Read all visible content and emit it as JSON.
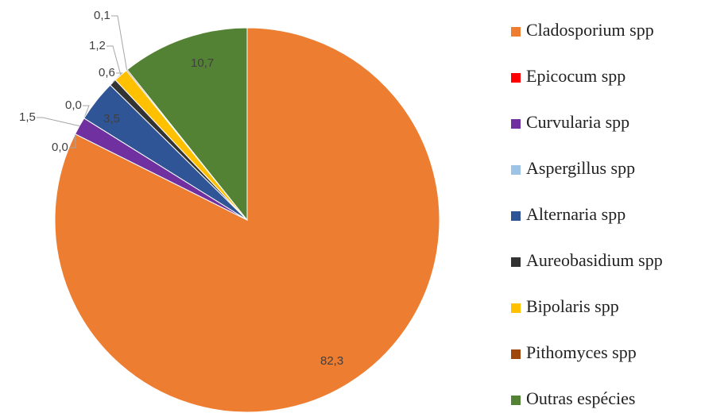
{
  "chart_data": {
    "type": "pie",
    "categories": [
      "Cladosporium spp",
      "Epicocum spp",
      "Curvularia spp",
      "Aspergillus spp",
      "Alternaria spp",
      "Aureobasidium spp",
      "Bipolaris spp",
      "Pithomyces spp",
      "Outras espécies"
    ],
    "values": [
      82.3,
      0.0,
      1.5,
      0.0,
      3.5,
      0.6,
      1.2,
      0.1,
      10.7
    ],
    "value_labels": [
      "82,3",
      "0,0",
      "1,5",
      "0,0",
      "3,5",
      "0,6",
      "1,2",
      "0,1",
      "10,7"
    ],
    "colors": [
      "#ed7d31",
      "#ff0000",
      "#7030a0",
      "#9dc3e6",
      "#2f5597",
      "#333333",
      "#ffc000",
      "#9e480e",
      "#548235"
    ],
    "legend": "right"
  }
}
